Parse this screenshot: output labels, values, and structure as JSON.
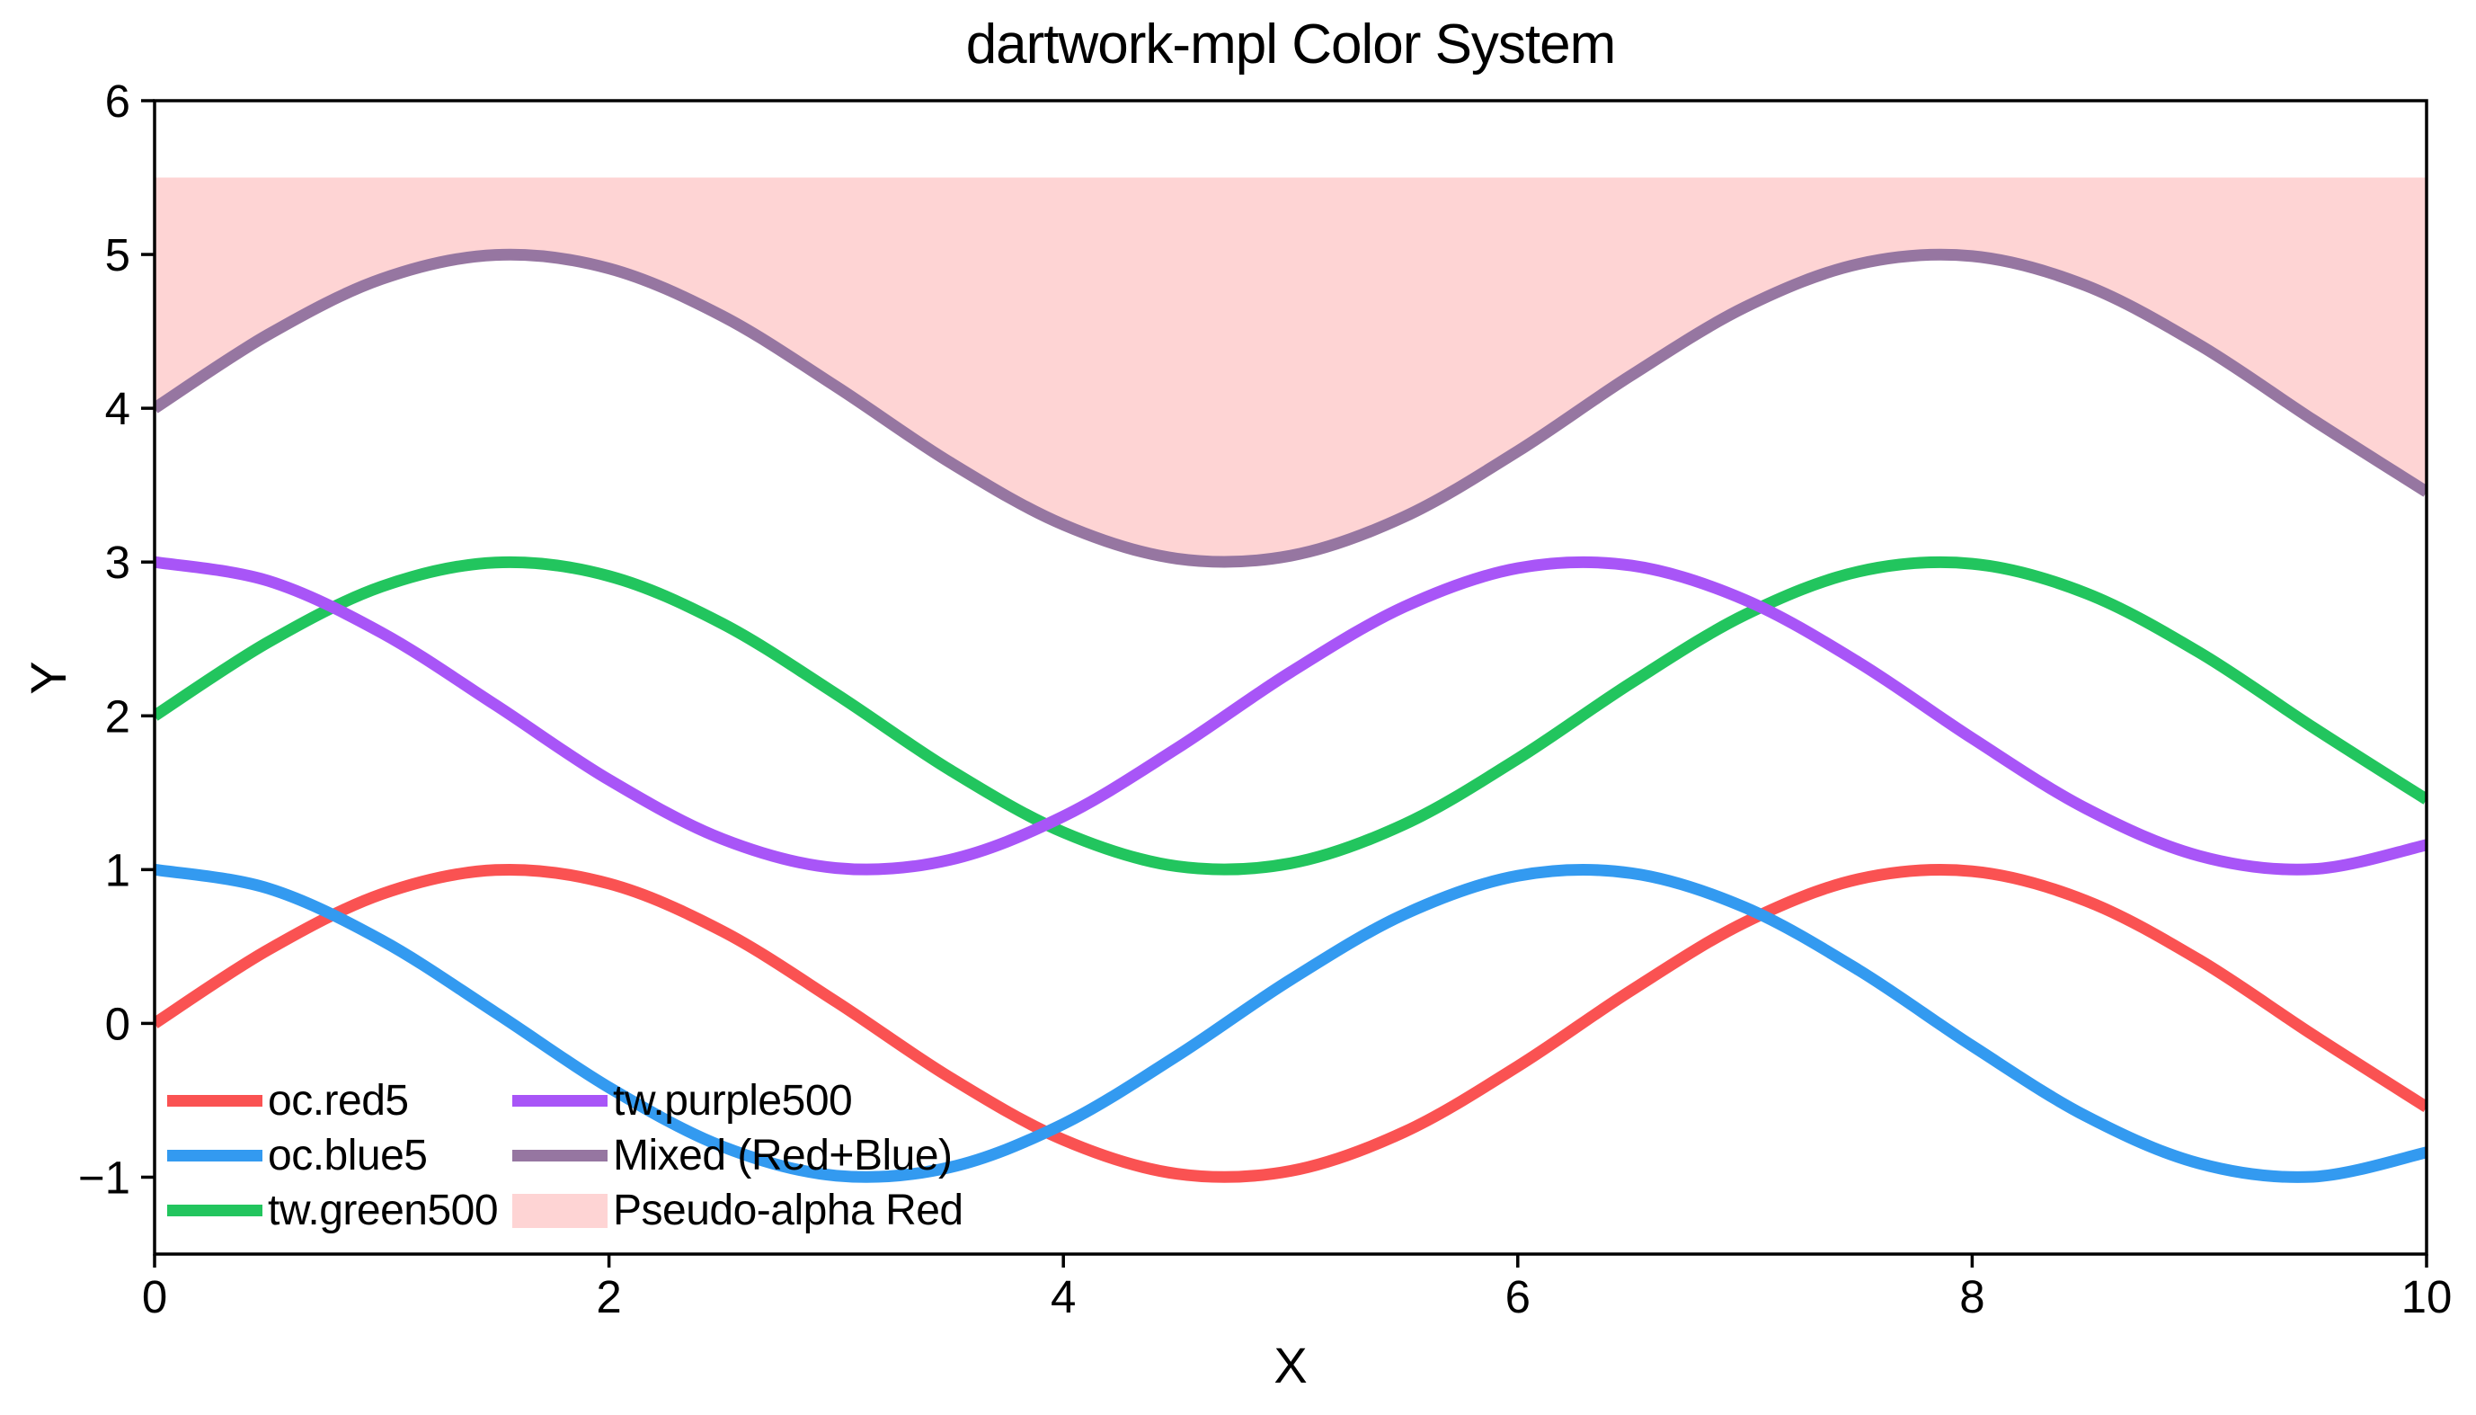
{
  "title": "dartwork-mpl Color System",
  "colors": {
    "background": "#ffffff",
    "spine": "#000000",
    "text": "#000000"
  },
  "chart_data": {
    "type": "line",
    "title": "dartwork-mpl Color System",
    "xlabel": "X",
    "ylabel": "Y",
    "xlim": [
      0,
      10
    ],
    "ylim": [
      -1.5,
      6
    ],
    "grid": false,
    "legend_position": "lower left",
    "legend_frame": false,
    "x": [
      0,
      0.5,
      1,
      1.5,
      2,
      2.5,
      3,
      3.5,
      4,
      4.5,
      5,
      5.5,
      6,
      6.5,
      7,
      7.5,
      8,
      8.5,
      9,
      9.5,
      10
    ],
    "series": [
      {
        "name": "oc.red5",
        "color": "#fa5252",
        "linewidth": 13,
        "values": [
          0,
          0.479,
          0.841,
          0.997,
          0.909,
          0.599,
          0.141,
          -0.351,
          -0.757,
          -0.978,
          -0.959,
          -0.706,
          -0.279,
          0.215,
          0.657,
          0.938,
          0.989,
          0.798,
          0.412,
          -0.075,
          -0.544
        ]
      },
      {
        "name": "oc.blue5",
        "color": "#339af0",
        "linewidth": 13,
        "values": [
          1,
          0.878,
          0.54,
          0.071,
          -0.416,
          -0.801,
          -0.99,
          -0.936,
          -0.654,
          -0.211,
          0.284,
          0.709,
          0.96,
          0.977,
          0.754,
          0.347,
          -0.146,
          -0.602,
          -0.911,
          -0.997,
          -0.839
        ]
      },
      {
        "name": "tw.green500",
        "color": "#22c55e",
        "linewidth": 13,
        "values": [
          2,
          2.479,
          2.841,
          2.997,
          2.909,
          2.599,
          2.141,
          1.649,
          1.243,
          1.022,
          1.041,
          1.294,
          1.721,
          2.215,
          2.657,
          2.938,
          2.989,
          2.798,
          2.412,
          1.925,
          1.456
        ]
      },
      {
        "name": "tw.purple500",
        "color": "#a855f7",
        "linewidth": 13,
        "values": [
          3,
          2.878,
          2.54,
          2.071,
          1.584,
          1.199,
          1.01,
          1.064,
          1.346,
          1.789,
          2.284,
          2.709,
          2.96,
          2.977,
          2.754,
          2.347,
          1.854,
          1.398,
          1.089,
          1.003,
          1.161
        ]
      },
      {
        "name": "Mixed (Red+Blue)",
        "color": "#9676a1",
        "linewidth": 13,
        "values": [
          4,
          4.479,
          4.841,
          4.997,
          4.909,
          4.599,
          4.141,
          3.649,
          3.243,
          3.022,
          3.041,
          3.294,
          3.721,
          4.215,
          4.657,
          4.938,
          4.989,
          4.798,
          4.412,
          3.925,
          3.456
        ]
      }
    ],
    "fill": {
      "label": "Pseudo-alpha Red",
      "color": "#fed4d4",
      "between_series": "Mixed (Red+Blue)",
      "top": 5.5
    },
    "xticks": {
      "values": [
        0,
        2,
        4,
        6,
        8,
        10
      ],
      "labels": [
        "0",
        "2",
        "4",
        "6",
        "8",
        "10"
      ]
    },
    "yticks": {
      "values": [
        -1,
        0,
        1,
        2,
        3,
        4,
        5,
        6
      ],
      "labels": [
        "−1",
        "0",
        "1",
        "2",
        "3",
        "4",
        "5",
        "6"
      ]
    },
    "legend": [
      {
        "label": "oc.red5",
        "type": "line",
        "color": "#fa5252"
      },
      {
        "label": "oc.blue5",
        "type": "line",
        "color": "#339af0"
      },
      {
        "label": "tw.green500",
        "type": "line",
        "color": "#22c55e"
      },
      {
        "label": "tw.purple500",
        "type": "line",
        "color": "#a855f7"
      },
      {
        "label": "Mixed (Red+Blue)",
        "type": "line",
        "color": "#9676a1"
      },
      {
        "label": "Pseudo-alpha Red",
        "type": "patch",
        "color": "#fed4d4"
      }
    ]
  }
}
